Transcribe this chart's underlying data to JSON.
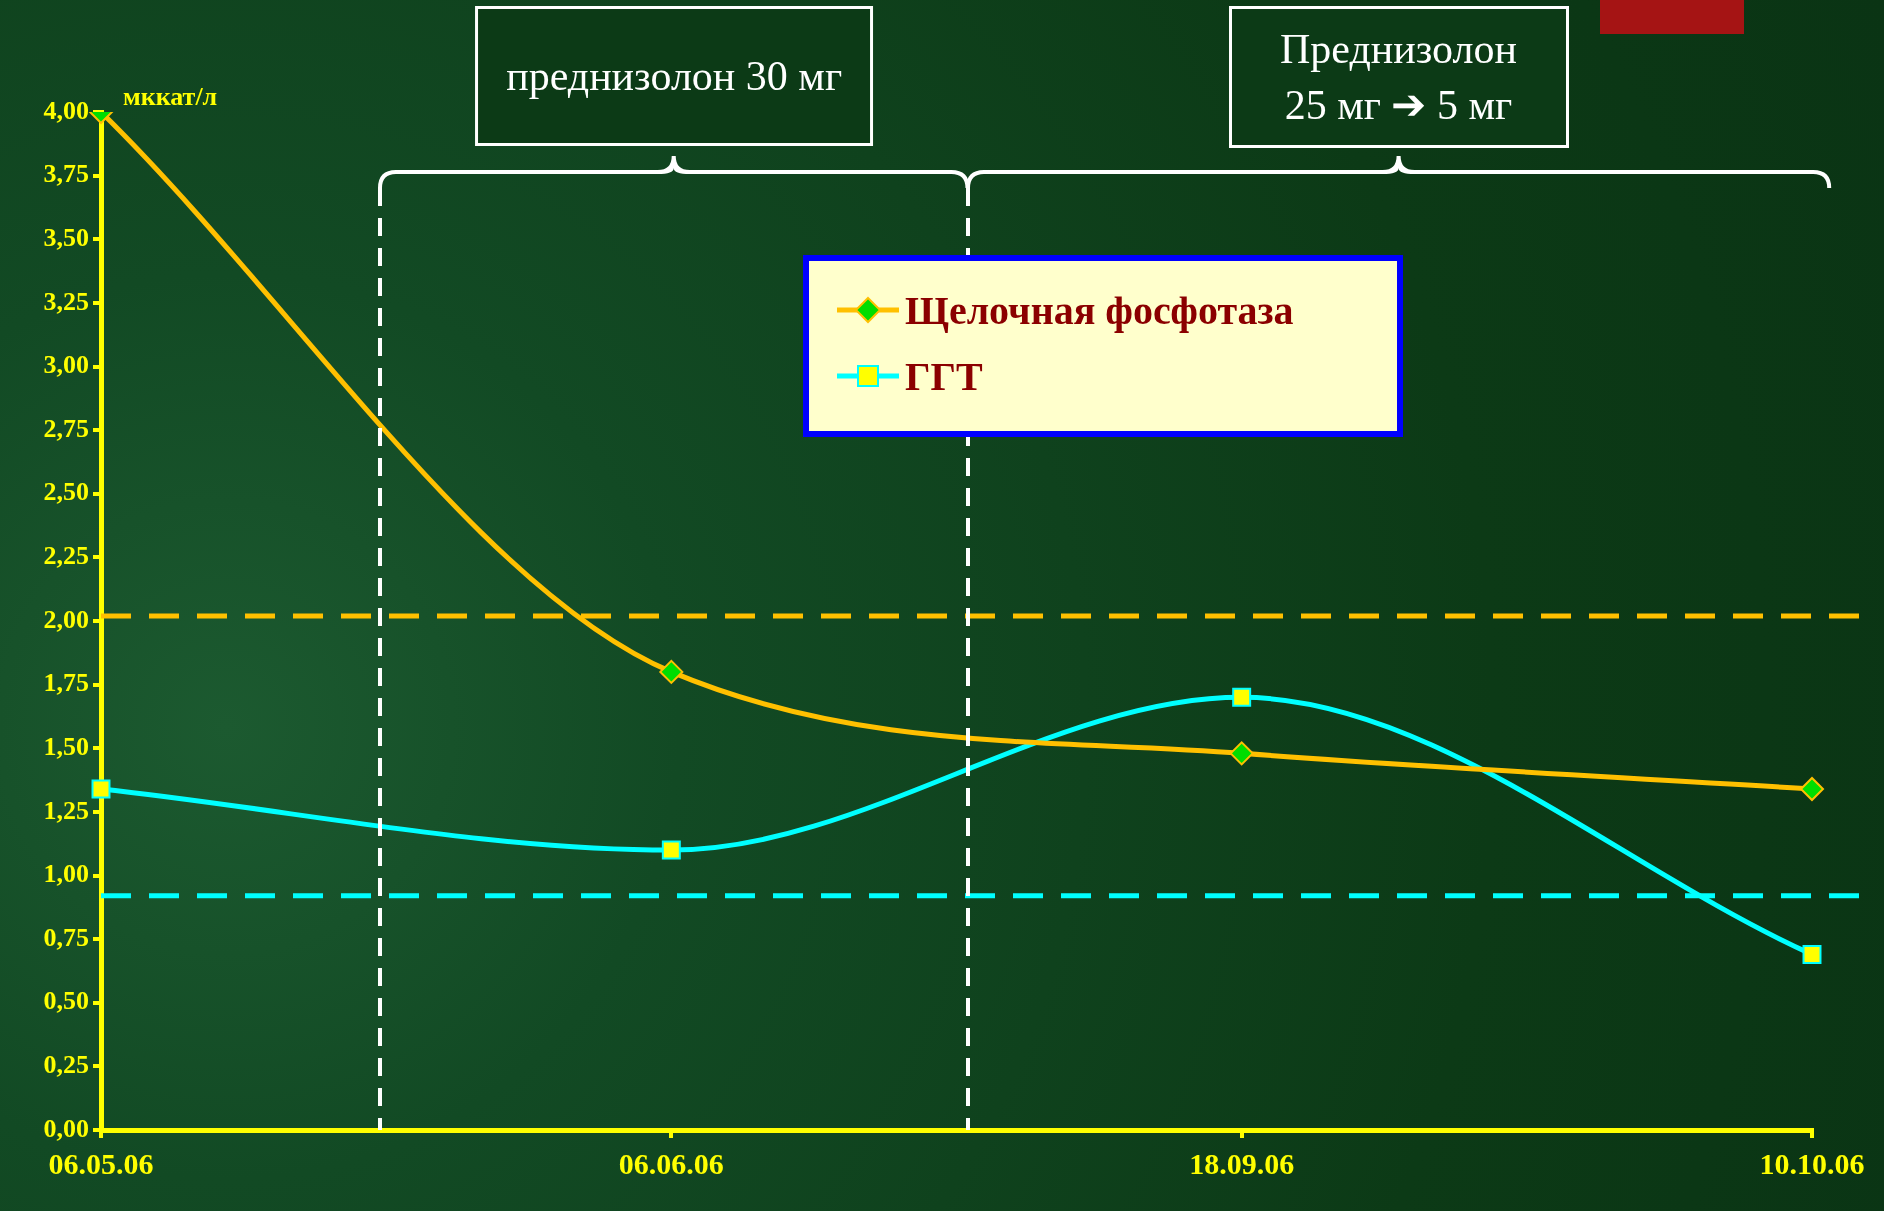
{
  "chart_data": {
    "type": "line",
    "ylabel": "мккат/л",
    "categories": [
      "06.05.06",
      "06.06.06",
      "18.09.06",
      "10.10.06"
    ],
    "series": [
      {
        "name": "Щелочная фосфотаза",
        "color": "#ffc000",
        "marker": "diamond",
        "values": [
          4.0,
          1.8,
          1.48,
          1.34
        ]
      },
      {
        "name": "ГГТ",
        "color": "#00ffff",
        "marker": "square",
        "values": [
          1.34,
          1.1,
          1.7,
          0.69
        ]
      }
    ],
    "ylim": [
      0,
      4
    ],
    "yticks": [
      {
        "value": 0,
        "label": "0,00"
      },
      {
        "value": 0.25,
        "label": "0,25"
      },
      {
        "value": 0.5,
        "label": "0,50"
      },
      {
        "value": 0.75,
        "label": "0,75"
      },
      {
        "value": 1,
        "label": "1,00"
      },
      {
        "value": 1.25,
        "label": "1,25"
      },
      {
        "value": 1.5,
        "label": "1,50"
      },
      {
        "value": 1.75,
        "label": "1,75"
      },
      {
        "value": 2,
        "label": "2,00"
      },
      {
        "value": 2.25,
        "label": "2,25"
      },
      {
        "value": 2.5,
        "label": "2,50"
      },
      {
        "value": 2.75,
        "label": "2,75"
      },
      {
        "value": 3,
        "label": "3,00"
      },
      {
        "value": 3.25,
        "label": "3,25"
      },
      {
        "value": 3.5,
        "label": "3,50"
      },
      {
        "value": 3.75,
        "label": "3,75"
      },
      {
        "value": 4,
        "label": "4,00"
      }
    ],
    "ref_lines": [
      {
        "axis": "y",
        "value": 2.02,
        "color": "#ffc000",
        "line_style": "dashed"
      },
      {
        "axis": "y",
        "value": 0.92,
        "color": "#00ffff",
        "line_style": "dashed"
      }
    ],
    "annotations": [
      "преднизолон 30 мг",
      "Преднизолон 25 мг ➔ 5 мг"
    ],
    "legend": "top"
  }
}
